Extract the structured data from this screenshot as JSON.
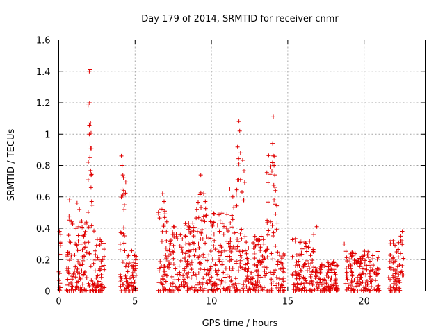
{
  "chart_data": {
    "type": "scatter",
    "title": "Day 179 of 2014, SRMTID for receiver cnmr",
    "xlabel": "GPS time / hours",
    "ylabel": "SRMTID / TECUs",
    "xlim": [
      0,
      24
    ],
    "ylim": [
      0,
      1.6
    ],
    "xticks": [
      0,
      5,
      10,
      15,
      20
    ],
    "xtick_labels": [
      "0",
      "5",
      "10",
      "15",
      "20"
    ],
    "yticks": [
      0,
      0.2,
      0.4,
      0.6,
      0.8,
      1.0,
      1.2,
      1.4,
      1.6
    ],
    "ytick_labels": [
      "0",
      "0.2",
      "0.4",
      "0.6",
      "0.8",
      "1",
      "1.2",
      "1.4",
      "1.6"
    ],
    "grid": true,
    "marker": "+",
    "color": "#e00000",
    "clusters": [
      {
        "x": [
          0.0,
          0.15
        ],
        "y": [
          0.0,
          0.38
        ]
      },
      {
        "x": [
          0.5,
          0.9
        ],
        "y": [
          0.0,
          0.58
        ]
      },
      {
        "x": [
          0.9,
          1.9
        ],
        "y": [
          0.0,
          0.55
        ]
      },
      {
        "x": [
          1.9,
          2.2
        ],
        "y": [
          0.0,
          1.41
        ]
      },
      {
        "x": [
          2.2,
          2.5
        ],
        "y": [
          0.0,
          0.45
        ]
      },
      {
        "x": [
          2.5,
          3.0
        ],
        "y": [
          0.0,
          0.39
        ]
      },
      {
        "x": [
          4.0,
          4.4
        ],
        "y": [
          0.0,
          0.86
        ]
      },
      {
        "x": [
          4.4,
          5.1
        ],
        "y": [
          0.0,
          0.32
        ]
      },
      {
        "x": [
          6.5,
          7.2
        ],
        "y": [
          0.0,
          0.62
        ]
      },
      {
        "x": [
          7.2,
          9.0
        ],
        "y": [
          0.0,
          0.52
        ]
      },
      {
        "x": [
          9.0,
          9.7
        ],
        "y": [
          0.0,
          0.74
        ]
      },
      {
        "x": [
          9.7,
          11.0
        ],
        "y": [
          0.0,
          0.6
        ]
      },
      {
        "x": [
          11.0,
          11.6
        ],
        "y": [
          0.0,
          0.66
        ]
      },
      {
        "x": [
          11.6,
          12.2
        ],
        "y": [
          0.0,
          1.08
        ]
      },
      {
        "x": [
          12.2,
          13.6
        ],
        "y": [
          0.0,
          0.42
        ]
      },
      {
        "x": [
          13.6,
          14.3
        ],
        "y": [
          0.0,
          1.11
        ]
      },
      {
        "x": [
          14.3,
          14.8
        ],
        "y": [
          0.0,
          0.3
        ]
      },
      {
        "x": [
          15.3,
          16.8
        ],
        "y": [
          0.0,
          0.4
        ]
      },
      {
        "x": [
          16.8,
          18.3
        ],
        "y": [
          0.0,
          0.22
        ]
      },
      {
        "x": [
          18.8,
          21.0
        ],
        "y": [
          0.0,
          0.3
        ]
      },
      {
        "x": [
          21.6,
          22.6
        ],
        "y": [
          0.0,
          0.39
        ]
      }
    ],
    "peak_points": [
      [
        0.05,
        0.38
      ],
      [
        0.1,
        0.36
      ],
      [
        0.7,
        0.58
      ],
      [
        1.2,
        0.56
      ],
      [
        1.35,
        0.52
      ],
      [
        2.0,
        1.4
      ],
      [
        2.05,
        1.41
      ],
      [
        2.02,
        1.2
      ],
      [
        2.08,
        1.07
      ],
      [
        2.0,
        1.0
      ],
      [
        2.1,
        0.91
      ],
      [
        2.04,
        0.85
      ],
      [
        2.12,
        0.74
      ],
      [
        2.15,
        0.57
      ],
      [
        4.1,
        0.86
      ],
      [
        4.15,
        0.8
      ],
      [
        4.2,
        0.74
      ],
      [
        4.25,
        0.64
      ],
      [
        4.3,
        0.55
      ],
      [
        6.8,
        0.62
      ],
      [
        6.9,
        0.57
      ],
      [
        9.3,
        0.74
      ],
      [
        9.5,
        0.62
      ],
      [
        9.6,
        0.57
      ],
      [
        11.2,
        0.65
      ],
      [
        11.4,
        0.6
      ],
      [
        11.8,
        1.08
      ],
      [
        11.85,
        1.02
      ],
      [
        11.9,
        0.88
      ],
      [
        11.8,
        0.81
      ],
      [
        11.9,
        0.71
      ],
      [
        12.0,
        0.63
      ],
      [
        14.05,
        1.11
      ],
      [
        14.1,
        0.8
      ],
      [
        14.15,
        0.74
      ],
      [
        14.2,
        0.64
      ],
      [
        14.1,
        0.58
      ],
      [
        14.2,
        0.49
      ],
      [
        16.9,
        0.41
      ],
      [
        16.7,
        0.36
      ],
      [
        18.7,
        0.3
      ],
      [
        22.5,
        0.38
      ],
      [
        22.4,
        0.35
      ],
      [
        21.9,
        0.32
      ]
    ]
  }
}
